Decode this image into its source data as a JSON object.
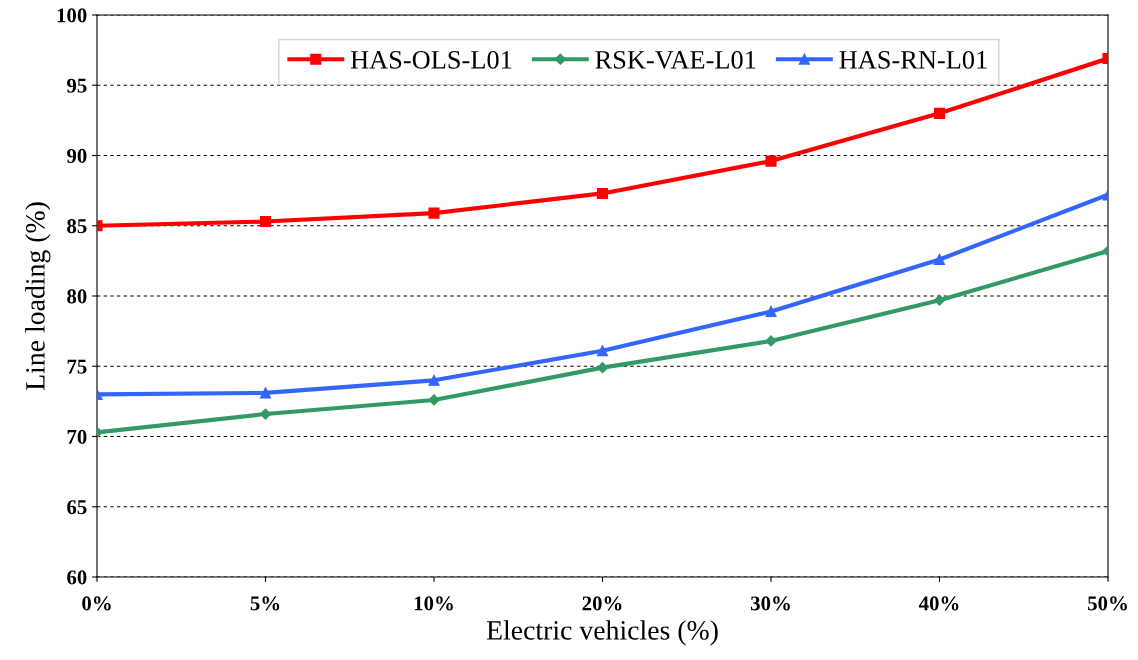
{
  "chart_data": {
    "type": "line",
    "xlabel": "Electric vehicles (%)",
    "ylabel": "Line loading (%)",
    "categories": [
      "0%",
      "5%",
      "10%",
      "20%",
      "30%",
      "40%",
      "50%"
    ],
    "series": [
      {
        "name": "HAS-OLS-L01",
        "color": "#ff0000",
        "marker": "square",
        "values": [
          85.0,
          85.3,
          85.9,
          87.3,
          89.6,
          93.0,
          96.9
        ]
      },
      {
        "name": "RSK-VAE-L01",
        "color": "#339966",
        "marker": "diamond",
        "values": [
          70.3,
          71.6,
          72.6,
          74.9,
          76.8,
          79.7,
          83.2
        ]
      },
      {
        "name": "HAS-RN-L01",
        "color": "#3366ff",
        "marker": "triangle",
        "values": [
          73.0,
          73.1,
          74.0,
          76.1,
          78.9,
          82.6,
          87.2
        ]
      }
    ],
    "ylim": [
      60,
      100
    ],
    "yticks": [
      60,
      65,
      70,
      75,
      80,
      85,
      90,
      95,
      100
    ],
    "grid": "y",
    "legend": "top right",
    "line_style": "solid"
  }
}
